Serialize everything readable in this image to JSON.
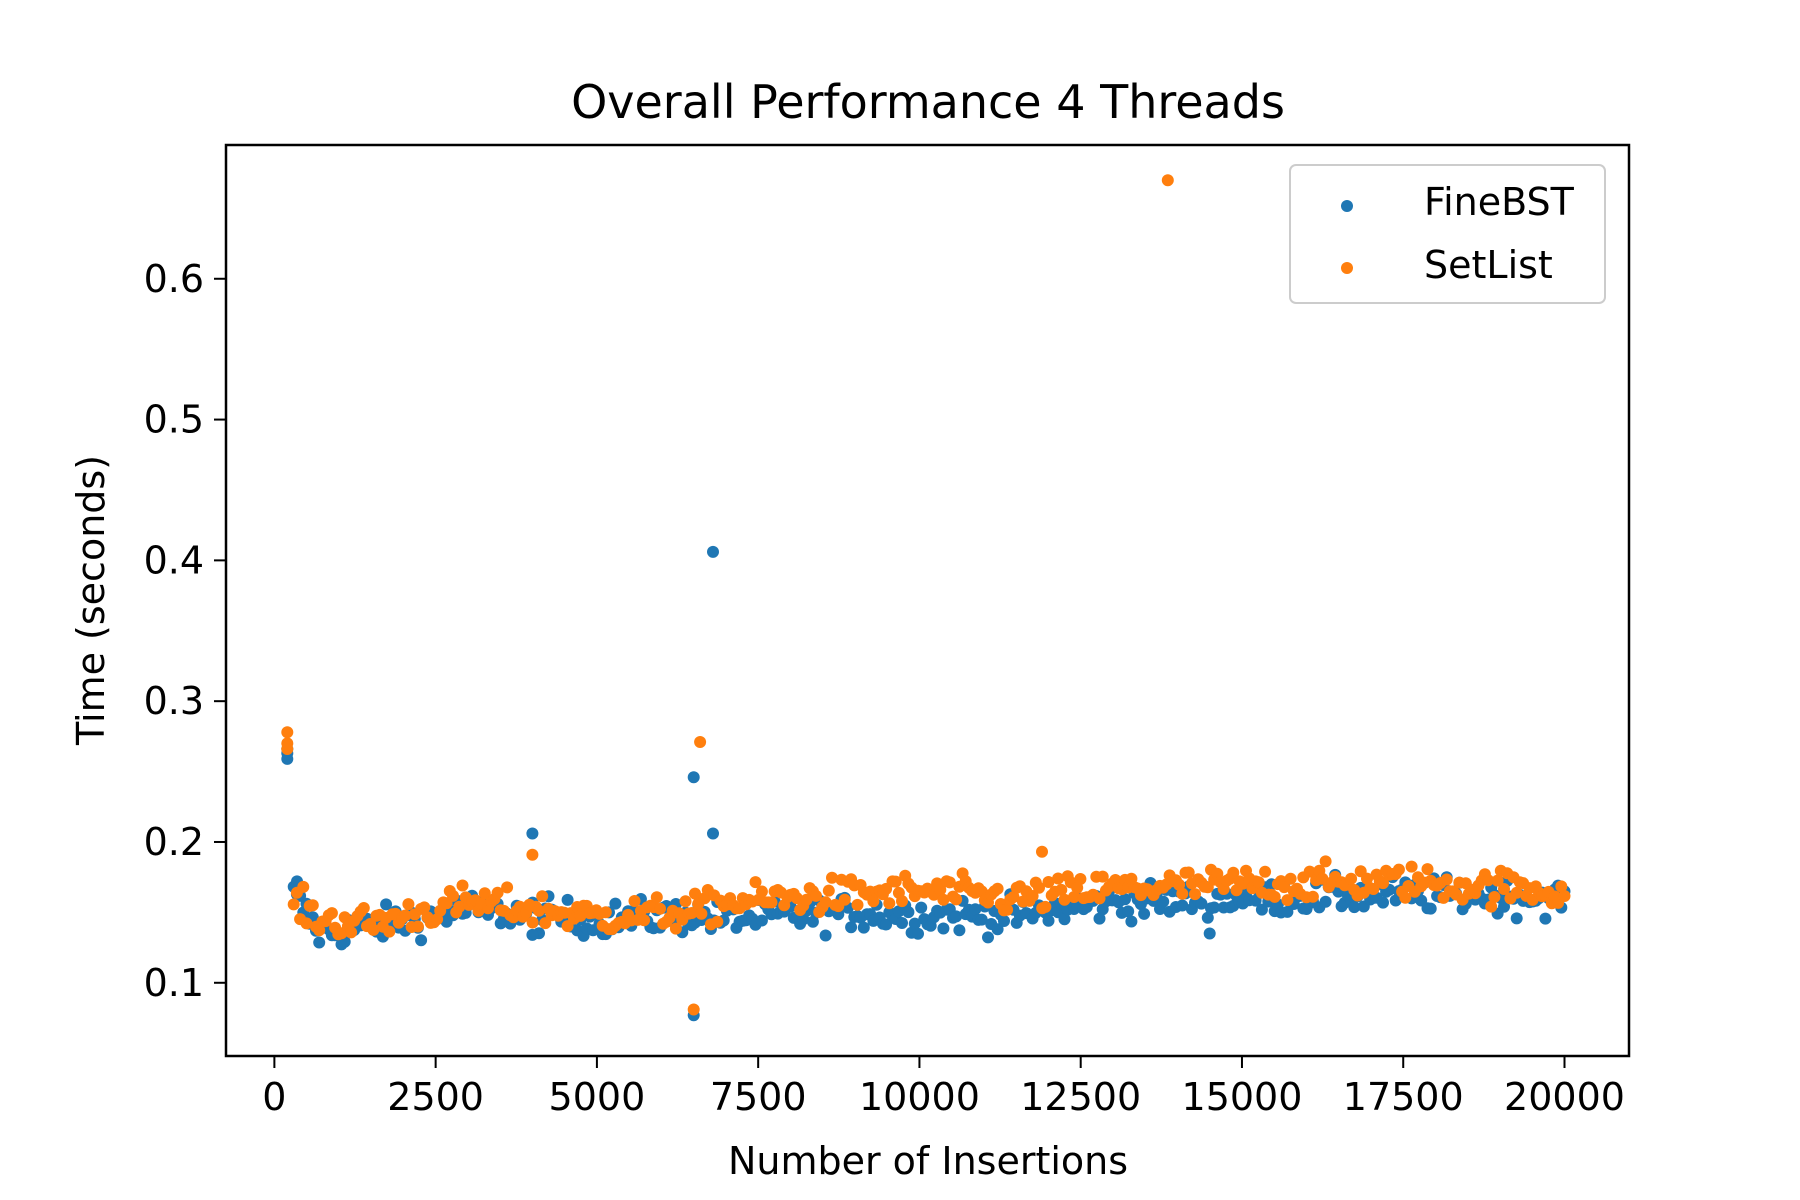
{
  "chart_data": {
    "type": "scatter",
    "title": "Overall Performance 4 Threads",
    "xlabel": "Number of Insertions",
    "ylabel": "Time (seconds)",
    "xlim": [
      -750,
      21000
    ],
    "ylim": [
      0.048,
      0.695
    ],
    "xticks": [
      0,
      2500,
      5000,
      7500,
      10000,
      12500,
      15000,
      17500,
      20000
    ],
    "yticks": [
      0.1,
      0.2,
      0.3,
      0.4,
      0.5,
      0.6
    ],
    "grid": false,
    "legend_position": "top-right",
    "series": [
      {
        "name": "FineBST",
        "color": "#1f77b4",
        "outliers": [
          [
            200,
            0.259
          ],
          [
            200,
            0.263
          ],
          [
            200,
            0.266
          ],
          [
            350,
            0.172
          ],
          [
            350,
            0.169
          ],
          [
            4000,
            0.206
          ],
          [
            4000,
            0.134
          ],
          [
            6500,
            0.077
          ],
          [
            6500,
            0.246
          ],
          [
            6800,
            0.406
          ],
          [
            6800,
            0.206
          ],
          [
            14500,
            0.135
          ]
        ],
        "baseline": [
          [
            300,
            0.162
          ],
          [
            700,
            0.135
          ],
          [
            1500,
            0.14
          ],
          [
            3000,
            0.152
          ],
          [
            5000,
            0.145
          ],
          [
            6500,
            0.148
          ],
          [
            7000,
            0.145
          ],
          [
            9000,
            0.15
          ],
          [
            10000,
            0.148
          ],
          [
            11500,
            0.148
          ],
          [
            13000,
            0.157
          ],
          [
            15000,
            0.16
          ],
          [
            17500,
            0.163
          ],
          [
            20000,
            0.16
          ]
        ],
        "spread": 0.011,
        "n": 400
      },
      {
        "name": "SetList",
        "color": "#ff7f0e",
        "outliers": [
          [
            200,
            0.278
          ],
          [
            200,
            0.27
          ],
          [
            200,
            0.266
          ],
          [
            4000,
            0.191
          ],
          [
            6500,
            0.081
          ],
          [
            6600,
            0.271
          ],
          [
            13850,
            0.67
          ],
          [
            11900,
            0.193
          ]
        ],
        "baseline": [
          [
            300,
            0.157
          ],
          [
            700,
            0.145
          ],
          [
            1500,
            0.142
          ],
          [
            3000,
            0.157
          ],
          [
            5000,
            0.147
          ],
          [
            6500,
            0.15
          ],
          [
            7000,
            0.157
          ],
          [
            9000,
            0.163
          ],
          [
            10000,
            0.165
          ],
          [
            11500,
            0.16
          ],
          [
            13000,
            0.167
          ],
          [
            15000,
            0.17
          ],
          [
            17500,
            0.172
          ],
          [
            20000,
            0.165
          ]
        ],
        "spread": 0.011,
        "n": 400
      }
    ]
  }
}
